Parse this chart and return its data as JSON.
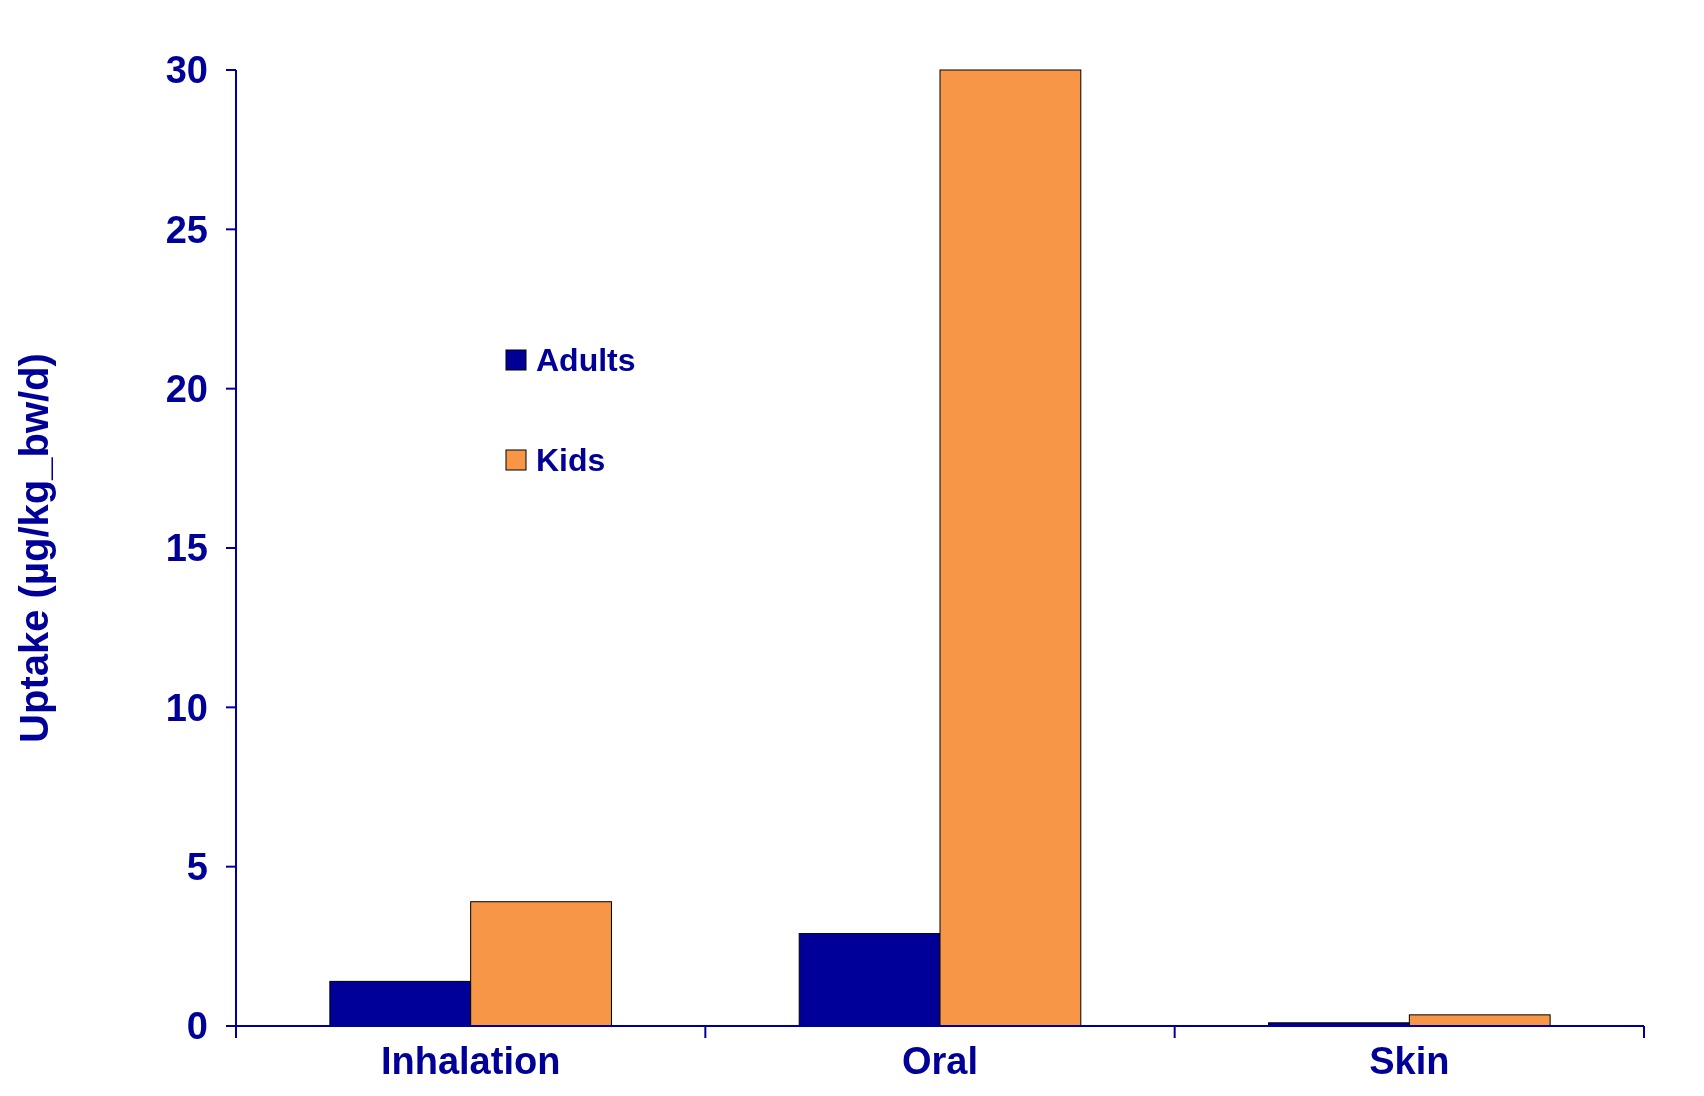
{
  "chart_data": {
    "type": "bar",
    "ylabel": "Uptake (µg/kg_bw/d)",
    "categories": [
      "Inhalation",
      "Oral",
      "Skin"
    ],
    "series": [
      {
        "name": "Adults",
        "color": "#000099",
        "values": [
          1.4,
          2.9,
          0.1
        ]
      },
      {
        "name": "Kids",
        "color": "#f79646",
        "values": [
          3.9,
          30,
          0.35
        ]
      }
    ],
    "ylim": [
      0,
      30
    ],
    "yticks": [
      0,
      5,
      10,
      15,
      20,
      25,
      30
    ],
    "grid": false,
    "legend": "top left"
  }
}
